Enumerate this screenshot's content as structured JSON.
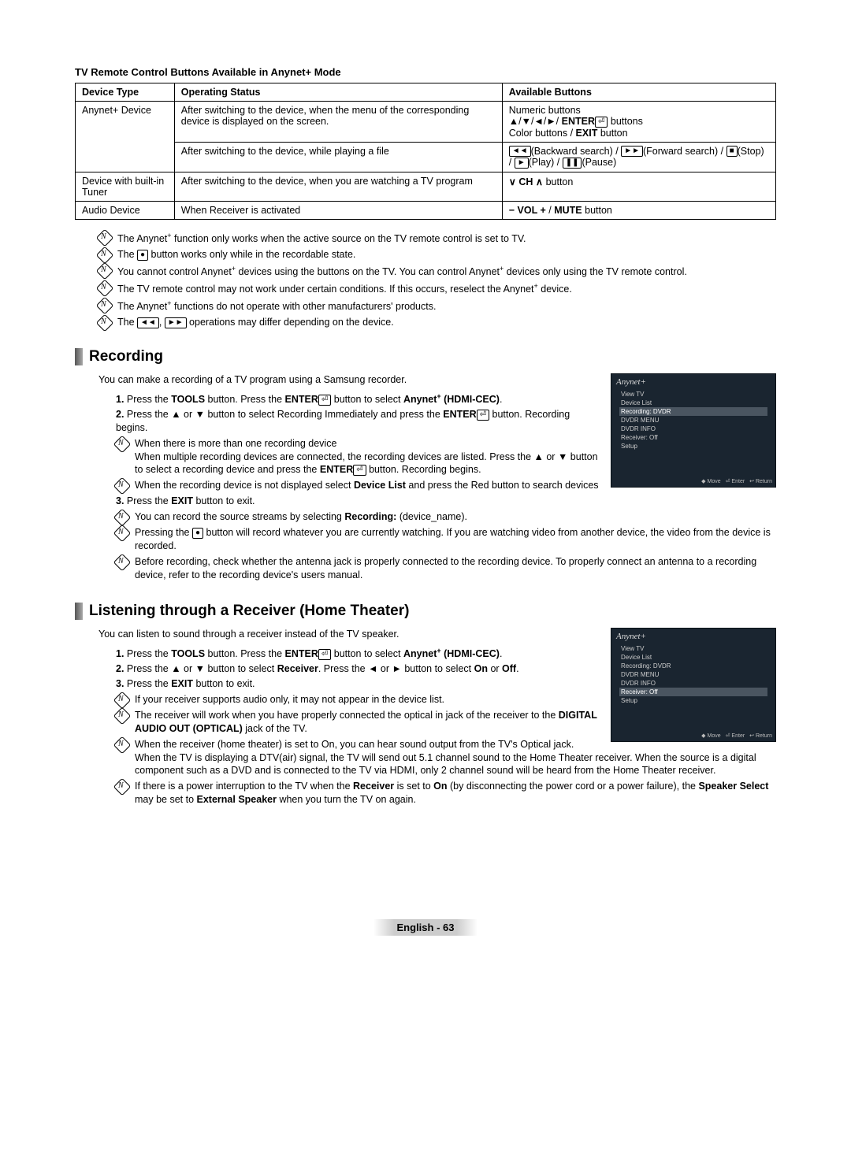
{
  "table_title": "TV Remote Control Buttons Available in Anynet+ Mode",
  "table": {
    "headers": [
      "Device Type",
      "Operating Status",
      "Available Buttons"
    ],
    "rows": [
      {
        "device": "Anynet+ Device",
        "rowspan": 2,
        "status": "After switching to the device, when the menu of the corresponding device is displayed on the screen.",
        "buttons_html": "Numeric buttons<br>▲/▼/◄/►/ <b>ENTER</b><span class='icon-box'>⏎</span> buttons<br>Color buttons / <b>EXIT</b> button"
      },
      {
        "status": "After switching to the device, while playing a file",
        "buttons_html": "<span class='icon-box'>◄◄</span>(Backward search) / <span class='icon-box'>►►</span>(Forward search) / <span class='icon-box'>■</span>(Stop) / <span class='icon-box'>►</span>(Play) / <span class='icon-box'>❚❚</span>(Pause)"
      },
      {
        "device": "Device with built-in Tuner",
        "status": "After switching to the device, when you are watching a TV program",
        "buttons_html": "<b>∨ CH ∧</b> button"
      },
      {
        "device": "Audio Device",
        "status": "When Receiver is activated",
        "buttons_html": "<b>− VOL +</b> / <b>MUTE</b> button"
      }
    ]
  },
  "top_notes": [
    "The Anynet<span class='sup'>+</span> function only works when the active source on the TV remote control is set to TV.",
    "The <span class='icon-box'>●</span> button works only while in the recordable state.",
    "You cannot control Anynet<span class='sup'>+</span> devices using the buttons on the TV. You can control Anynet<span class='sup'>+</span> devices only using the TV remote control.",
    "The TV remote control may not work under certain conditions. If this occurs, reselect the Anynet<span class='sup'>+</span> device.",
    "The Anynet<span class='sup'>+</span> functions do not operate with other manufacturers' products.",
    "The <span class='icon-box'>◄◄</span>, <span class='icon-box'>►►</span> operations may differ depending on the device."
  ],
  "recording": {
    "heading": "Recording",
    "intro": "You can make a recording of a TV program using a Samsung recorder.",
    "osd_menu": {
      "logo": "Anynet+",
      "items": [
        "View TV",
        "Device List",
        "Recording: DVDR",
        "DVDR MENU",
        "DVDR INFO",
        "Receiver: Off",
        "Setup"
      ],
      "highlight_index": 2,
      "footer": [
        "◆ Move",
        "⏎ Enter",
        "↩ Return"
      ]
    },
    "steps": [
      "Press the <b>TOOLS</b> button. Press the <b>ENTER</b><span class='icon-box'>⏎</span> button to select <b>Anynet<span class='sup'>+</span> (HDMI-CEC)</b>.",
      "Press the ▲ or ▼ button to select Recording Immediately and press the <b>ENTER</b><span class='icon-box'>⏎</span> button. Recording begins.",
      "Press the <b>EXIT</b> button to exit."
    ],
    "step2_notes": [
      "When there is more than one recording device<br>When multiple recording devices are connected, the recording devices are listed. Press the ▲ or ▼ button to select a recording device and press the <b>ENTER</b><span class='icon-box'>⏎</span> button. Recording begins.",
      "When the recording device is not displayed select <b>Device List</b> and press the Red button to search devices"
    ],
    "step3_notes": [
      "You can record the source streams by selecting <b>Recording:</b> (device_name).",
      "Pressing the <span class='icon-box'>●</span> button will record whatever you are currently watching. If you are watching video from another device, the video from the device is recorded.",
      "Before recording, check whether the antenna jack is properly connected to the recording device. To properly connect an antenna to a recording device, refer to the recording device's users manual."
    ]
  },
  "listening": {
    "heading": "Listening through a Receiver (Home Theater)",
    "intro": "You can listen to sound through a receiver instead of the TV speaker.",
    "osd_menu": {
      "logo": "Anynet+",
      "items": [
        "View TV",
        "Device List",
        "Recording: DVDR",
        "DVDR MENU",
        "DVDR INFO",
        "Receiver: Off",
        "Setup"
      ],
      "highlight_index": 5,
      "footer": [
        "◆ Move",
        "⏎ Enter",
        "↩ Return"
      ]
    },
    "steps": [
      "Press the <b>TOOLS</b> button. Press the <b>ENTER</b><span class='icon-box'>⏎</span> button to select <b>Anynet<span class='sup'>+</span> (HDMI-CEC)</b>.",
      "Press the ▲ or ▼ button to select <b>Receiver</b>. Press the ◄ or ► button to select <b>On</b> or <b>Off</b>.",
      "Press the <b>EXIT</b> button to exit."
    ],
    "step3_notes": [
      "If your receiver supports audio only, it may not appear in the device list.",
      "The receiver will work when you have properly connected the optical in jack of the receiver to the <b>DIGITAL AUDIO OUT (OPTICAL)</b> jack of the TV.",
      "When the receiver (home theater) is set to On, you can hear sound output from the TV's Optical jack. When the TV is displaying a DTV(air) signal, the TV will send out 5.1 channel sound to the Home Theater receiver. When the source is a digital component such as a DVD and is connected to the TV via HDMI, only 2 channel sound will be heard from the Home Theater receiver.",
      "If there is a power interruption to the TV when the <b>Receiver</b> is set to <b>On</b> (by disconnecting the power cord or a power failure), the <b>Speaker Select</b> may be set to <b>External Speaker</b> when you turn the TV on again."
    ]
  },
  "footer": "English - 63"
}
